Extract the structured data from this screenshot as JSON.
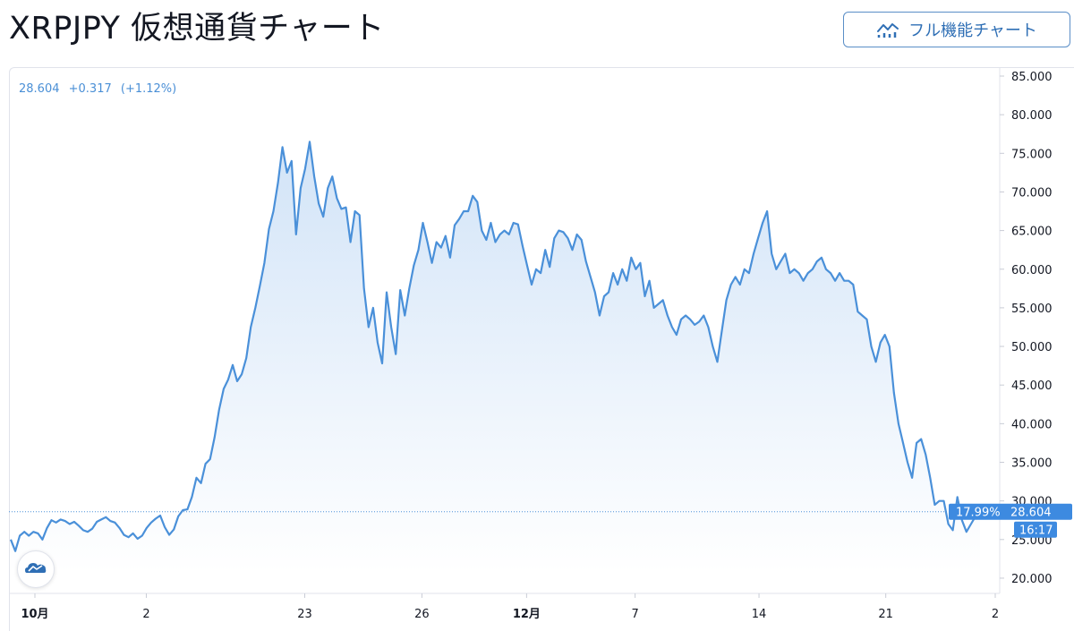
{
  "header": {
    "title": "XRPJPY 仮想通貨チャート",
    "full_chart_label": "フル機能チャート",
    "full_chart_icon": "chart-line-icon"
  },
  "legend": {
    "last": "28.604",
    "change": "+0.317",
    "change_pct": "(+1.12%)"
  },
  "colors": {
    "line": "#4a90d9",
    "fill_top": "#cfe2f7",
    "fill_bottom": "#ffffff",
    "tag": "#3d8ae0"
  },
  "price_tag": {
    "percent": "17.99%",
    "price": "28.604",
    "countdown": "16:17"
  },
  "chart_data": {
    "type": "area",
    "title": "",
    "xlabel": "",
    "ylabel": "",
    "ylim": [
      17,
      86
    ],
    "yticks": [
      "85.000",
      "80.000",
      "75.000",
      "70.000",
      "65.000",
      "60.000",
      "55.000",
      "50.000",
      "45.000",
      "40.000",
      "35.000",
      "30.000",
      "25.000",
      "20.000"
    ],
    "xticks": [
      {
        "label": "10月",
        "bold": true,
        "t": 0
      },
      {
        "label": "2",
        "bold": false,
        "t": 0.116
      },
      {
        "label": "23",
        "bold": false,
        "t": 0.281
      },
      {
        "label": "26",
        "bold": false,
        "t": 0.403
      },
      {
        "label": "12月",
        "bold": true,
        "t": 0.512
      },
      {
        "label": "7",
        "bold": false,
        "t": 0.625
      },
      {
        "label": "14",
        "bold": false,
        "t": 0.754
      },
      {
        "label": "21",
        "bold": false,
        "t": 0.886
      },
      {
        "label": "2",
        "bold": false,
        "t": 1.0
      }
    ],
    "last_value": 28.604,
    "series": [
      {
        "values": [
          25.0,
          23.5,
          25.5,
          26.0,
          25.5,
          26.0,
          25.8,
          25.0,
          26.5,
          27.5,
          27.2,
          27.6,
          27.4,
          27.0,
          27.3,
          26.8,
          26.2,
          26.0,
          26.4,
          27.3,
          27.6,
          27.9,
          27.4,
          27.2,
          26.5,
          25.6,
          25.3,
          25.8,
          25.1,
          25.5,
          26.5,
          27.2,
          27.7,
          28.1,
          26.6,
          25.6,
          26.3,
          28.0,
          28.8,
          28.9,
          30.5,
          33.0,
          32.3,
          34.8,
          35.4,
          38.2,
          41.8,
          44.5,
          45.7,
          47.6,
          45.5,
          46.4,
          48.5,
          52.5,
          55.0,
          57.8,
          60.8,
          65.2,
          67.5,
          71.2,
          75.8,
          72.5,
          74.0,
          64.5,
          70.5,
          73.0,
          76.5,
          72.0,
          68.5,
          66.8,
          70.5,
          72.0,
          69.2,
          67.8,
          68.0,
          63.5,
          67.5,
          67.0,
          57.5,
          52.5,
          55.0,
          50.5,
          47.8,
          57.0,
          52.5,
          49.0,
          57.3,
          54.0,
          57.5,
          60.5,
          62.5,
          66.0,
          63.5,
          60.8,
          63.5,
          62.8,
          64.3,
          61.5,
          65.7,
          66.5,
          67.5,
          67.5,
          69.5,
          68.7,
          65.0,
          63.8,
          66.0,
          63.5,
          64.5,
          65.0,
          64.5,
          66.0,
          65.8,
          63.0,
          60.5,
          58.0,
          60.0,
          59.5,
          62.5,
          60.3,
          64.0,
          65.0,
          64.8,
          64.0,
          62.5,
          64.5,
          63.8,
          61.0,
          59.0,
          57.0,
          54.0,
          56.5,
          57.0,
          59.5,
          58.0,
          60.0,
          58.5,
          61.5,
          60.0,
          60.8,
          56.5,
          58.5,
          55.0,
          55.5,
          56.0,
          54.0,
          52.5,
          51.5,
          53.5,
          54.0,
          53.5,
          52.8,
          53.2,
          54.0,
          52.5,
          50.0,
          48.0,
          52.0,
          56.0,
          58.0,
          59.0,
          58.0,
          60.0,
          59.5,
          62.0,
          64.0,
          66.0,
          67.5,
          62.0,
          60.0,
          61.0,
          62.0,
          59.5,
          60.0,
          59.5,
          58.5,
          59.5,
          60.0,
          61.0,
          61.5,
          60.0,
          59.5,
          58.5,
          59.5,
          58.5,
          58.5,
          58.0,
          54.5,
          54.0,
          53.5,
          50.0,
          48.0,
          50.5,
          51.5,
          50.0,
          44.0,
          40.0,
          37.5,
          35.0,
          33.0,
          37.5,
          38.0,
          36.0,
          33.0,
          29.5,
          30.0,
          30.0,
          27.0,
          26.2,
          30.5,
          27.5,
          26.0,
          27.0,
          28.0,
          28.604
        ]
      }
    ]
  }
}
